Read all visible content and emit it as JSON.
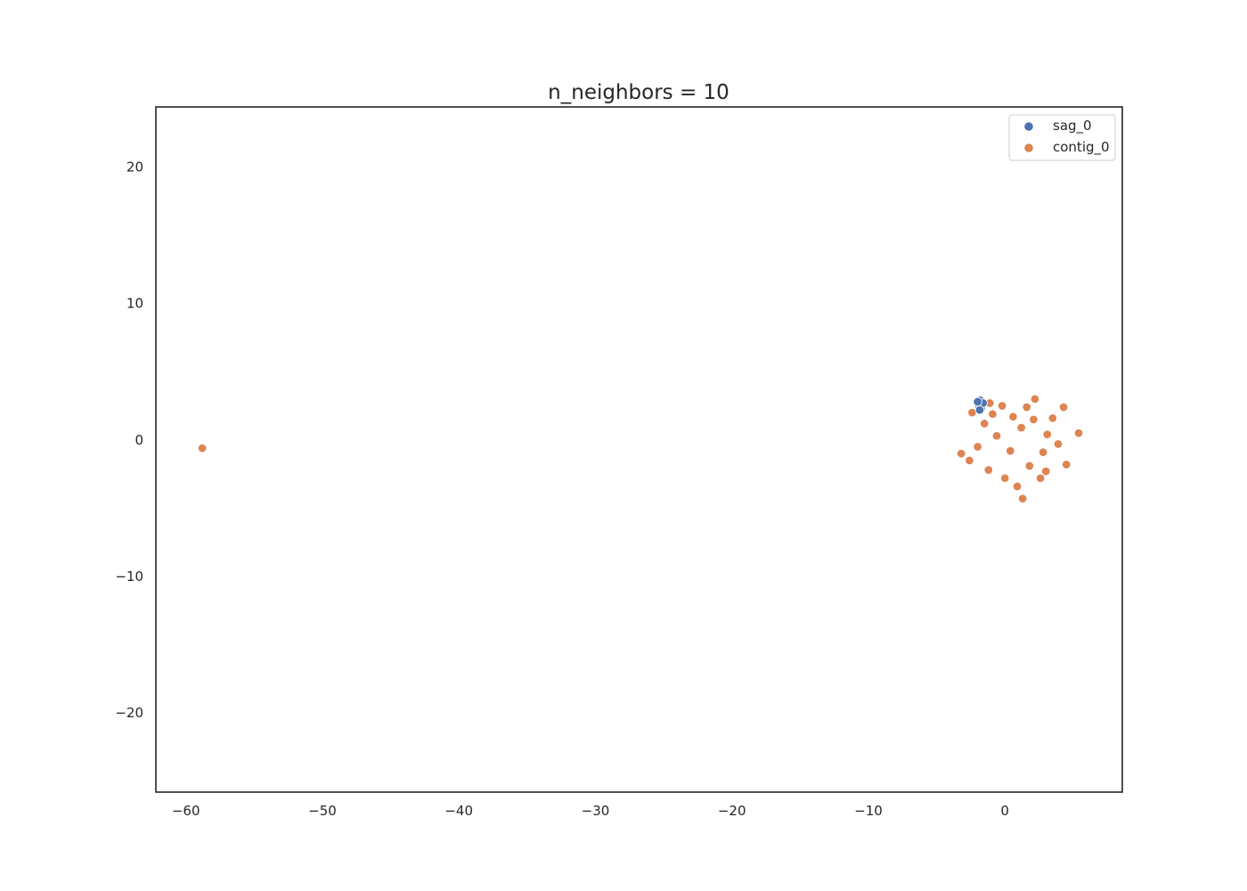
{
  "chart_data": {
    "type": "scatter",
    "title": "n_neighbors = 10",
    "xlabel": "",
    "ylabel": "",
    "xlim": [
      -62.2,
      8.6
    ],
    "ylim": [
      -25.8,
      24.4
    ],
    "xticks": [
      -60,
      -50,
      -40,
      -30,
      -20,
      -10,
      0
    ],
    "xtick_labels": [
      "−60",
      "−50",
      "−40",
      "−30",
      "−20",
      "−10",
      "0"
    ],
    "yticks": [
      20,
      10,
      0,
      -10,
      -20
    ],
    "ytick_labels": [
      "20",
      "10",
      "0",
      "−10",
      "−20"
    ],
    "grid": false,
    "legend_position": "top-right",
    "series": [
      {
        "name": "sag_0",
        "color": "#4c72b0",
        "points": [
          [
            -1.8,
            2.9
          ],
          [
            -1.7,
            2.6
          ],
          [
            -1.9,
            2.5
          ],
          [
            -1.75,
            2.3
          ],
          [
            -1.6,
            2.7
          ],
          [
            -2.0,
            2.8
          ],
          [
            -1.85,
            2.2
          ]
        ]
      },
      {
        "name": "contig_0",
        "color": "#dd8452",
        "points": [
          [
            -58.8,
            -0.6
          ],
          [
            5.4,
            0.5
          ],
          [
            4.5,
            -1.8
          ],
          [
            2.2,
            3.0
          ],
          [
            1.3,
            -4.3
          ],
          [
            -3.2,
            -1.0
          ],
          [
            -2.4,
            2.0
          ],
          [
            -1.1,
            2.7
          ],
          [
            -0.2,
            2.5
          ],
          [
            4.3,
            2.4
          ],
          [
            3.0,
            -2.3
          ],
          [
            2.6,
            -2.8
          ],
          [
            -2.0,
            -0.5
          ],
          [
            -1.5,
            1.2
          ],
          [
            -0.6,
            0.3
          ],
          [
            0.4,
            -0.8
          ],
          [
            1.2,
            0.9
          ],
          [
            2.1,
            1.5
          ],
          [
            3.1,
            0.4
          ],
          [
            3.9,
            -0.3
          ],
          [
            -2.6,
            -1.5
          ],
          [
            -1.2,
            -2.2
          ],
          [
            0.0,
            -2.8
          ],
          [
            0.9,
            -3.4
          ],
          [
            1.8,
            -1.9
          ],
          [
            2.8,
            -0.9
          ],
          [
            3.5,
            1.6
          ],
          [
            1.6,
            2.4
          ],
          [
            0.6,
            1.7
          ],
          [
            -0.9,
            1.9
          ]
        ]
      }
    ]
  }
}
